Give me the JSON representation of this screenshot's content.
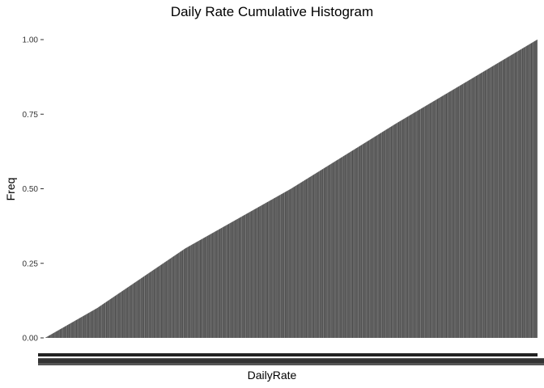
{
  "chart_data": {
    "type": "bar",
    "title": "Daily Rate Cumulative Histogram",
    "xlabel": "DailyRate",
    "ylabel": "Freq",
    "ylim": [
      0,
      1.0
    ],
    "y_ticks": [
      {
        "value": 0.0,
        "label": "0.00"
      },
      {
        "value": 0.25,
        "label": "0.25"
      },
      {
        "value": 0.5,
        "label": "0.50"
      },
      {
        "value": 0.75,
        "label": "0.75"
      },
      {
        "value": 1.0,
        "label": "1.00"
      }
    ],
    "bar_count": 886,
    "bar_color": "#4d4d4d",
    "series": [
      {
        "kind": "cumulative",
        "x_range": [
          102,
          1499
        ],
        "cumulative_freq_at": [
          {
            "x": 102,
            "y": 0.0
          },
          {
            "x": 250,
            "y": 0.1
          },
          {
            "x": 500,
            "y": 0.3
          },
          {
            "x": 800,
            "y": 0.5
          },
          {
            "x": 1100,
            "y": 0.72
          },
          {
            "x": 1300,
            "y": 0.86
          },
          {
            "x": 1499,
            "y": 1.0
          }
        ]
      }
    ],
    "grid": false,
    "x_tick_labels_unreadable": true
  }
}
